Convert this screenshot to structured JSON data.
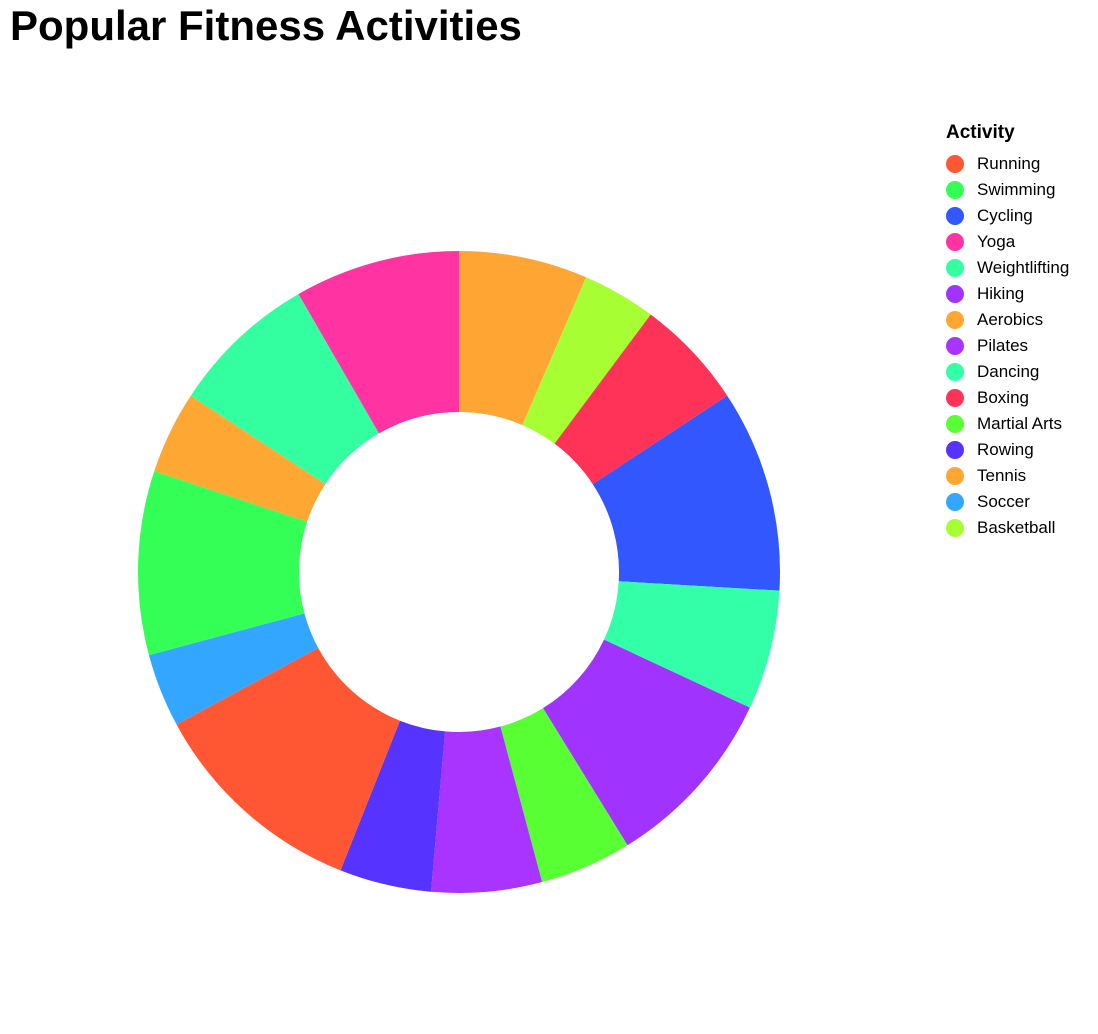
{
  "chart_data": {
    "type": "pie",
    "variant": "donut",
    "title": "Popular Fitness Activities",
    "legend_title": "Activity",
    "legend_position": "right",
    "categories": [
      "Running",
      "Swimming",
      "Cycling",
      "Yoga",
      "Weightlifting",
      "Hiking",
      "Aerobics",
      "Pilates",
      "Dancing",
      "Boxing",
      "Martial Arts",
      "Rowing",
      "Tennis",
      "Soccer",
      "Basketball"
    ],
    "colors": [
      "#ff5733",
      "#33ff57",
      "#3357ff",
      "#ff33a1",
      "#33ffa1",
      "#a133ff",
      "#ffa533",
      "#a933ff",
      "#33ffa8",
      "#ff3357",
      "#57ff33",
      "#5733ff",
      "#ffa733",
      "#33a7ff",
      "#a7ff33"
    ],
    "slice_order": [
      "Aerobics",
      "Basketball",
      "Boxing",
      "Cycling",
      "Dancing",
      "Hiking",
      "Martial Arts",
      "Pilates",
      "Rowing",
      "Running",
      "Soccer",
      "Swimming",
      "Tennis",
      "Weightlifting",
      "Yoga"
    ],
    "values": {
      "Running": 12.0,
      "Swimming": 10.0,
      "Cycling": 11.0,
      "Yoga": 9.0,
      "Weightlifting": 8.0,
      "Hiking": 10.0,
      "Aerobics": 7.0,
      "Pilates": 6.0,
      "Dancing": 6.5,
      "Boxing": 6.0,
      "Martial Arts": 5.0,
      "Rowing": 5.0,
      "Tennis": 4.5,
      "Soccer": 4.0,
      "Basketball": 4.0
    }
  }
}
